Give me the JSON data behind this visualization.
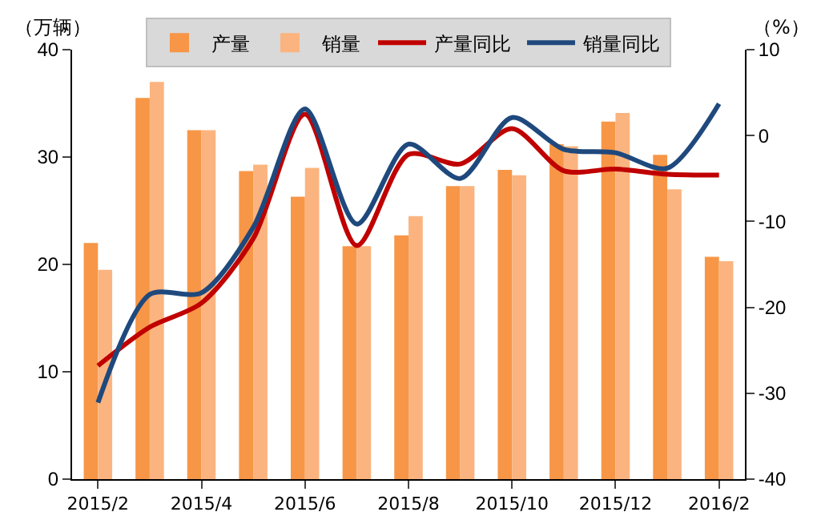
{
  "chart_data": {
    "type": "bar",
    "ylabel": "（万辆）",
    "y2label": "（%）",
    "categories": [
      "2015/2",
      null,
      "2015/4",
      null,
      "2015/6",
      null,
      "2015/8",
      null,
      "2015/10",
      null,
      "2015/12",
      null,
      "2016/2"
    ],
    "series": [
      {
        "name": "产量",
        "color": "#f79646",
        "values": [
          22.0,
          35.5,
          32.5,
          28.7,
          26.3,
          21.7,
          22.7,
          27.3,
          28.8,
          31.2,
          33.3,
          30.2,
          20.7
        ]
      },
      {
        "name": "销量",
        "color": "#fbb47f",
        "values": [
          19.5,
          37.0,
          32.5,
          29.3,
          29.0,
          21.7,
          24.5,
          27.3,
          28.3,
          31.0,
          34.1,
          27.0,
          20.3
        ]
      },
      {
        "name": "产量同比",
        "type": "line",
        "axis": "y2",
        "color": "#c00000",
        "values": [
          -26.8,
          -22.3,
          -19.5,
          -12.0,
          2.5,
          -12.8,
          -2.2,
          -3.3,
          0.8,
          -4.1,
          -3.9,
          -4.5,
          -4.6
        ]
      },
      {
        "name": "销量同比",
        "type": "line",
        "axis": "y2",
        "color": "#1f497d",
        "values": [
          -31.1,
          -18.5,
          -18.3,
          -10.7,
          3.1,
          -10.3,
          -1.0,
          -5.0,
          2.1,
          -1.6,
          -2.0,
          -3.8,
          3.7
        ]
      }
    ],
    "ylim": [
      0,
      40
    ],
    "yticks": [
      0,
      10,
      20,
      30,
      40
    ],
    "y2lim": [
      -40,
      10
    ],
    "y2ticks": [
      -40,
      -30,
      -20,
      -10,
      0,
      10
    ],
    "grid": false,
    "legend": "top",
    "marker": "none",
    "line_style": "solid"
  }
}
